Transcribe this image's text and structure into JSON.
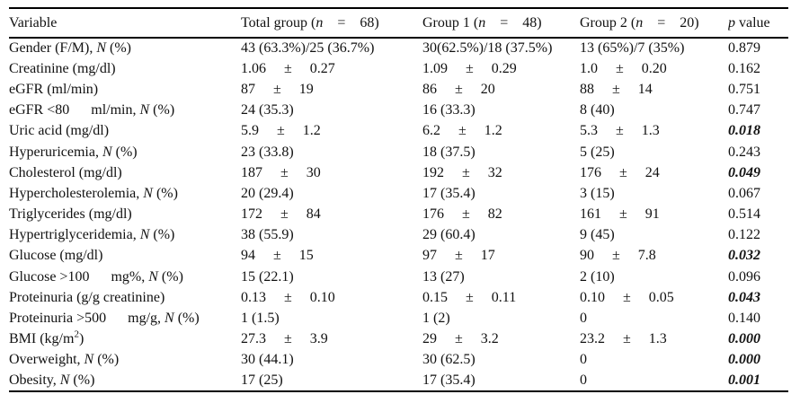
{
  "table": {
    "columns": [
      {
        "label": "Variable"
      },
      {
        "label": "Total group (<i>n</i>    =    68)"
      },
      {
        "label": "Group 1 (<i>n</i>    =    48)"
      },
      {
        "label": "Group 2 (<i>n</i>    =    20)"
      },
      {
        "label": "<i>p</i> value"
      }
    ],
    "rows": [
      {
        "label": "Gender (F/M), <i>N</i> (%)",
        "total": "43 (63.3%)/25 (36.7%)",
        "group1": "30(62.5%)/18 (37.5%)",
        "group2": "13 (65%)/7 (35%)",
        "p": "0.879"
      },
      {
        "label": "Creatinine (mg/dl)",
        "total": "1.06     ±     0.27",
        "group1": "1.09     ±     0.29",
        "group2": "1.0     ±     0.20",
        "p": "0.162"
      },
      {
        "label": "eGFR (ml/min)",
        "total": "87     ±     19",
        "group1": "86     ±     20",
        "group2": "88     ±     14",
        "p": "0.751"
      },
      {
        "label": "eGFR &lt;80      ml/min, <i>N</i> (%)",
        "total": "24 (35.3)",
        "group1": "16 (33.3)",
        "group2": "8 (40)",
        "p": "0.747"
      },
      {
        "label": "Uric acid (mg/dl)",
        "total": "5.9     ±     1.2",
        "group1": "6.2     ±     1.2",
        "group2": "5.3     ±     1.3",
        "p": "<b><i>0.018</i></b>"
      },
      {
        "label": "Hyperuricemia, <i>N</i> (%)",
        "total": "23 (33.8)",
        "group1": "18 (37.5)",
        "group2": "5 (25)",
        "p": "0.243"
      },
      {
        "label": "Cholesterol (mg/dl)",
        "total": "187     ±     30",
        "group1": "192     ±     32",
        "group2": "176     ±     24",
        "p": "<b><i>0.049</i></b>"
      },
      {
        "label": "Hypercholesterolemia, <i>N</i> (%)",
        "total": "20 (29.4)",
        "group1": "17 (35.4)",
        "group2": "3 (15)",
        "p": "0.067"
      },
      {
        "label": "Triglycerides (mg/dl)",
        "total": "172     ±     84",
        "group1": "176     ±     82",
        "group2": "161     ±     91",
        "p": "0.514"
      },
      {
        "label": "Hypertriglyceridemia, <i>N</i> (%)",
        "total": "38 (55.9)",
        "group1": "29 (60.4)",
        "group2": "9 (45)",
        "p": "0.122"
      },
      {
        "label": "Glucose (mg/dl)",
        "total": "94     ±     15",
        "group1": "97     ±     17",
        "group2": "90     ±     7.8",
        "p": "<b><i>0.032</i></b>"
      },
      {
        "label": "Glucose &gt;100      mg%, <i>N</i> (%)",
        "total": "15 (22.1)",
        "group1": "13 (27)",
        "group2": "2 (10)",
        "p": "0.096"
      },
      {
        "label": "Proteinuria (g/g creatinine)",
        "total": "0.13     ±     0.10",
        "group1": "0.15     ±     0.11",
        "group2": "0.10     ±     0.05",
        "p": "<b><i>0.043</i></b>"
      },
      {
        "label": "Proteinuria &gt;500      mg/g, <i>N</i> (%)",
        "total": "1 (1.5)",
        "group1": "1 (2)",
        "group2": "0",
        "p": "0.140"
      },
      {
        "label": "BMI (kg/m<sup>2</sup>)",
        "total": "27.3     ±     3.9",
        "group1": "29     ±     3.2",
        "group2": "23.2     ±     1.3",
        "p": "<b><i>0.000</i></b>"
      },
      {
        "label": "Overweight, <i>N</i> (%)",
        "total": "30 (44.1)",
        "group1": "30 (62.5)",
        "group2": "0",
        "p": "<b><i>0.000</i></b>"
      },
      {
        "label": "Obesity, <i>N</i> (%)",
        "total": "17 (25)",
        "group1": "17 (35.4)",
        "group2": "0",
        "p": "<b><i>0.001</i></b>"
      }
    ]
  },
  "styles": {
    "background": "#ffffff",
    "text_color": "#111111",
    "border_color": "#000000",
    "significant_p_style": "bold-italic"
  }
}
